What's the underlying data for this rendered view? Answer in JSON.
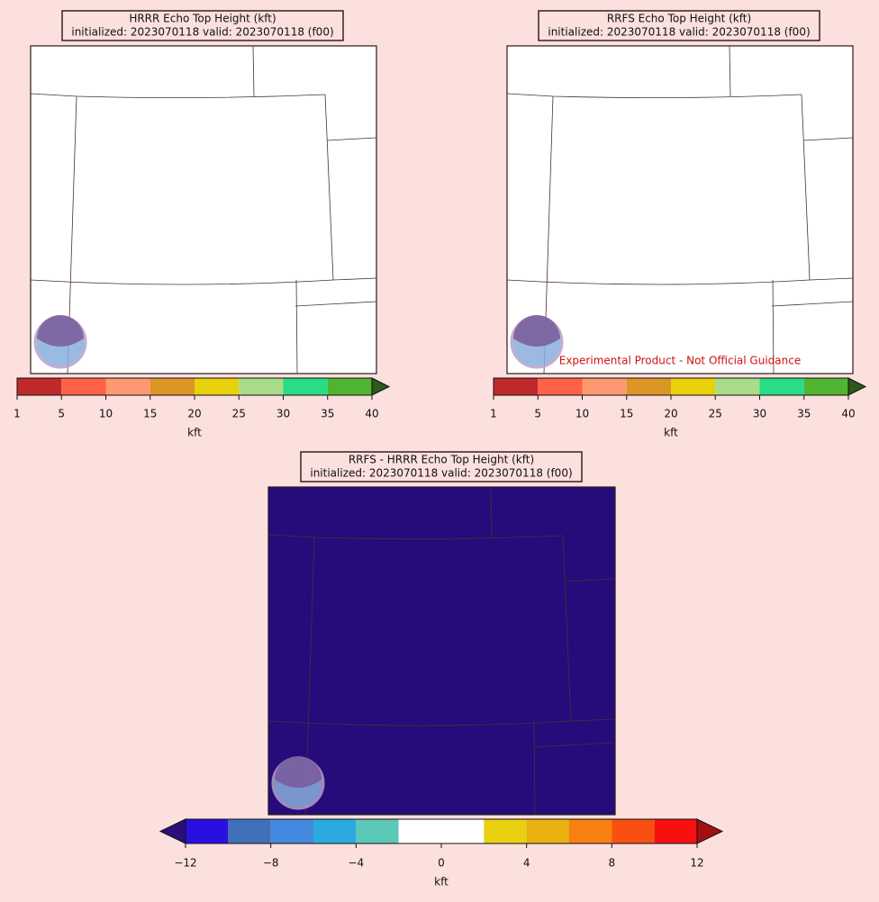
{
  "panels": [
    {
      "title": "HRRR Echo Top Height (kft)",
      "subtitle": "initialized: 2023070118 valid: 2023070118 (f00)",
      "map_fill": "#ffffff",
      "colorbar": {
        "bounds": [
          1,
          5,
          10,
          15,
          20,
          25,
          30,
          35,
          40
        ],
        "colors": [
          "#c02a2a",
          "#ff6048",
          "#ff9870",
          "#dc9628",
          "#e8d00a",
          "#a8dc88",
          "#28dc88",
          "#50b430"
        ],
        "extend": "max",
        "over_color": "#2d5a1a",
        "spacing": "uniform",
        "label": "kft"
      }
    },
    {
      "title": "RRFS Echo Top Height (kft)",
      "subtitle": "initialized: 2023070118 valid: 2023070118 (f00)",
      "map_fill": "#ffffff",
      "note": "Experimental Product - Not Official Guidance",
      "colorbar": {
        "bounds": [
          1,
          5,
          10,
          15,
          20,
          25,
          30,
          35,
          40
        ],
        "colors": [
          "#c02a2a",
          "#ff6048",
          "#ff9870",
          "#dc9628",
          "#e8d00a",
          "#a8dc88",
          "#28dc88",
          "#50b430"
        ],
        "extend": "max",
        "over_color": "#2d5a1a",
        "spacing": "uniform",
        "label": "kft"
      }
    },
    {
      "title": "RRFS - HRRR Echo Top Height (kft)",
      "subtitle": "initialized: 2023070118 valid: 2023070118 (f00)",
      "map_fill": "#260b7a",
      "colorbar": {
        "bounds": [
          -12,
          -10,
          -8,
          -6,
          -4,
          -2,
          2,
          4,
          6,
          8,
          10,
          12
        ],
        "colors": [
          "#2a10e0",
          "#3f70b8",
          "#4488e0",
          "#2aaadd",
          "#5cc8b8",
          "#ffffff",
          "#e8d010",
          "#e8b010",
          "#f88010",
          "#f85010",
          "#f81010"
        ],
        "ticks": [
          {
            "value": -12,
            "label": "−12"
          },
          {
            "value": -8,
            "label": "−8"
          },
          {
            "value": -4,
            "label": "−4"
          },
          0,
          4,
          8,
          12
        ],
        "extend": "both",
        "under_color": "#2a0e7a",
        "over_color": "#a01010",
        "spacing": "proportional",
        "label": "kft"
      }
    }
  ]
}
